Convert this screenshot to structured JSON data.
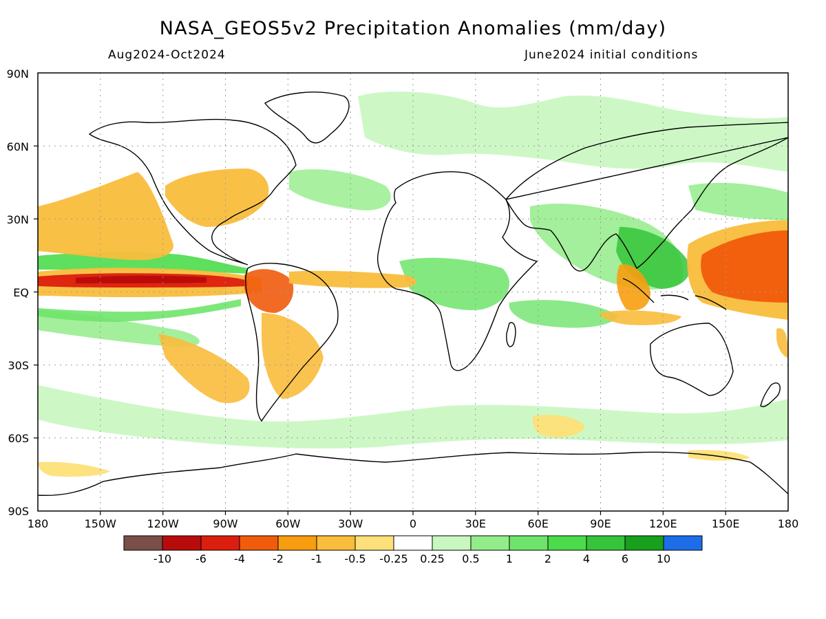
{
  "header": {
    "title": "NASA_GEOS5v2 Precipitation Anomalies (mm/day)",
    "period": "Aug2024-Oct2024",
    "initial_conditions": "June2024 initial conditions"
  },
  "axes": {
    "lat_ticks": [
      "90N",
      "60N",
      "30N",
      "EQ",
      "30S",
      "60S",
      "90S"
    ],
    "lon_ticks": [
      "180",
      "150W",
      "120W",
      "90W",
      "60W",
      "30W",
      "0",
      "30E",
      "60E",
      "90E",
      "120E",
      "150E",
      "180"
    ],
    "lon_range": [
      -180,
      180
    ],
    "lat_range": [
      -90,
      90
    ],
    "grid": true
  },
  "colorbar": {
    "colors": [
      "#7a4f47",
      "#b80b0b",
      "#dc1e0e",
      "#f15b0c",
      "#f79d0f",
      "#f9bd3c",
      "#fde079",
      "#ffffff",
      "#c8f7c0",
      "#93ec8a",
      "#6fe46b",
      "#4cdc4b",
      "#35c43a",
      "#16a01b",
      "#1e6de8"
    ],
    "labels": [
      "-10",
      "-6",
      "-4",
      "-2",
      "-1",
      "-0.5",
      "-0.25",
      "0.25",
      "0.5",
      "1",
      "2",
      "4",
      "6",
      "10"
    ]
  },
  "chart_data": {
    "type": "heatmap",
    "title": "NASA_GEOS5v2 Precipitation Anomalies (mm/day)",
    "units": "mm/day",
    "period": "Aug2024-Oct2024",
    "initial_conditions": "June2024 initial conditions",
    "x_range": [
      -180,
      180
    ],
    "y_range": [
      -90,
      90
    ],
    "grid": true
  }
}
